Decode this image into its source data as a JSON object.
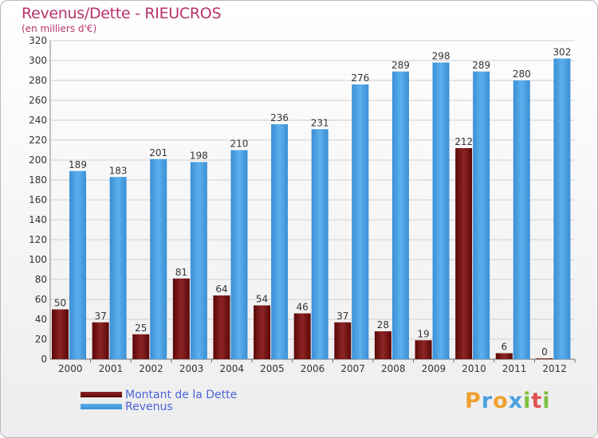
{
  "chart_data": {
    "type": "bar",
    "title": "Revenus/Dette - RIEUCROS",
    "subtitle": "(en milliers d'€)",
    "categories": [
      "2000",
      "2001",
      "2002",
      "2003",
      "2004",
      "2005",
      "2006",
      "2007",
      "2008",
      "2009",
      "2010",
      "2011",
      "2012"
    ],
    "series": [
      {
        "name": "Montant de la Dette",
        "color": "#7a1414",
        "values": [
          50,
          37,
          25,
          81,
          64,
          54,
          46,
          37,
          28,
          19,
          212,
          6,
          0
        ]
      },
      {
        "name": "Revenus",
        "color": "#4a9fe0",
        "values": [
          189,
          183,
          201,
          198,
          210,
          236,
          231,
          276,
          289,
          298,
          289,
          280,
          302
        ]
      }
    ],
    "ylim": [
      0,
      320
    ],
    "yticks": [
      0,
      20,
      40,
      60,
      80,
      100,
      120,
      140,
      160,
      180,
      200,
      220,
      240,
      260,
      280,
      300,
      320
    ],
    "grid": true,
    "legend": "bottom-left"
  },
  "brand": {
    "logo_letters": [
      "P",
      "r",
      "o",
      "x",
      "i",
      "t",
      "i"
    ],
    "logo_colors": [
      "#f0a030",
      "#4aa0e0",
      "#f0a030",
      "#4aa0e0",
      "#80c040",
      "#e05050",
      "#80c040"
    ]
  }
}
